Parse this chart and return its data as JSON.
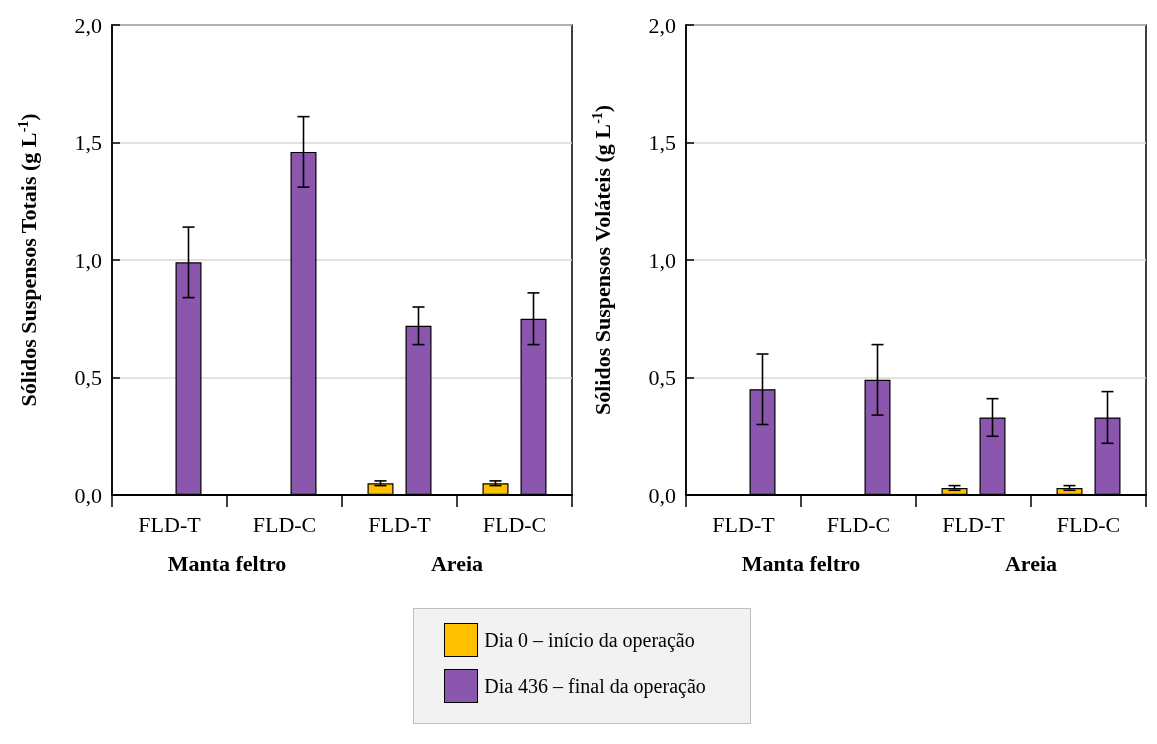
{
  "chart_data": [
    {
      "type": "bar",
      "ylabel": "Sólidos Suspensos Totais (g L$^{-1}$)",
      "categories": [
        "FLD-T",
        "FLD-C",
        "FLD-T",
        "FLD-C"
      ],
      "annotations": [
        "Manta feltro",
        "Areia"
      ],
      "series": [
        {
          "name": "Dia 0 – início da operação",
          "color": "#ffc000",
          "values": [
            null,
            null,
            0.05,
            0.05
          ],
          "errors": [
            null,
            null,
            0.01,
            0.01
          ]
        },
        {
          "name": "Dia 436 – final da operação",
          "color": "#8b56ad",
          "values": [
            0.99,
            1.46,
            0.72,
            0.75
          ],
          "errors": [
            0.15,
            0.15,
            0.08,
            0.11
          ]
        }
      ],
      "ylim": [
        0,
        2
      ],
      "yticks": [
        {
          "value": 0,
          "label": "0,0"
        },
        {
          "value": 0.5,
          "label": "0,5"
        },
        {
          "value": 1,
          "label": "1,0"
        },
        {
          "value": 1.5,
          "label": "1,5"
        },
        {
          "value": 2,
          "label": "2,0"
        }
      ],
      "grid": "y",
      "legend": "bottom"
    },
    {
      "type": "bar",
      "ylabel": "Sólidos Suspensos Voláteis (g L$^{-1}$)",
      "categories": [
        "FLD-T",
        "FLD-C",
        "FLD-T",
        "FLD-C"
      ],
      "annotations": [
        "Manta feltro",
        "Areia"
      ],
      "series": [
        {
          "color": "#ffc000",
          "values": [
            null,
            null,
            0.03,
            0.03
          ],
          "errors": [
            null,
            null,
            0.01,
            0.01
          ]
        },
        {
          "color": "#8b56ad",
          "values": [
            0.45,
            0.49,
            0.33,
            0.33
          ],
          "errors": [
            0.15,
            0.15,
            0.08,
            0.11
          ]
        }
      ],
      "ylim": [
        0,
        2
      ],
      "yticks": [
        {
          "value": 0,
          "label": "0,0"
        },
        {
          "value": 0.5,
          "label": "0,5"
        },
        {
          "value": 1,
          "label": "1,0"
        },
        {
          "value": 1.5,
          "label": "1,5"
        },
        {
          "value": 2,
          "label": "2,0"
        }
      ],
      "grid": "y",
      "legend": false
    }
  ]
}
